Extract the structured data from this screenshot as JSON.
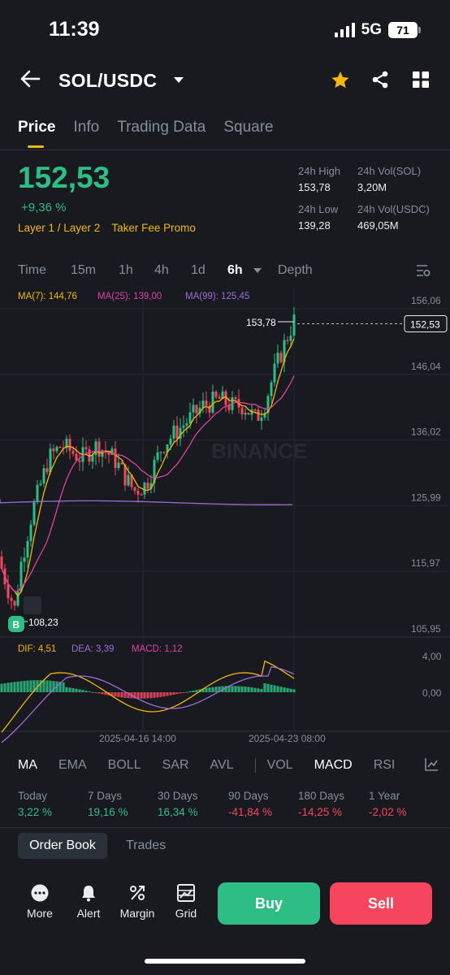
{
  "status": {
    "time": "11:39",
    "network": "5G",
    "battery": "71"
  },
  "header": {
    "pair": "SOL/USDC"
  },
  "tabs": [
    "Price",
    "Info",
    "Trading Data",
    "Square"
  ],
  "price": {
    "last": "152,53",
    "change": "+9,36 %"
  },
  "tags": [
    "Layer 1 / Layer 2",
    "Taker Fee Promo"
  ],
  "stats": {
    "high_label": "24h High",
    "high": "153,78",
    "vol_sol_label": "24h Vol(SOL)",
    "vol_sol": "3,20M",
    "low_label": "24h Low",
    "low": "139,28",
    "vol_usdc_label": "24h Vol(USDC)",
    "vol_usdc": "469,05M"
  },
  "timeframes": [
    "Time",
    "15m",
    "1h",
    "4h",
    "1d",
    "6h",
    "Depth"
  ],
  "chart": {
    "ma7": "MA(7): 144,76",
    "ma25": "MA(25): 139,00",
    "ma99": "MA(99): 125,45",
    "y_ticks": [
      "156,06",
      "146,04",
      "136,02",
      "125,99",
      "115,97",
      "105,95"
    ],
    "current_price": "152,53",
    "high_marker": "153,78",
    "low_marker": "108,23",
    "buy_marker": "B",
    "watermark": "BINANCE",
    "macd_dif": "DIF: 4,51",
    "macd_dea": "DEA: 3,39",
    "macd_val": "MACD: 1,12",
    "macd_ticks": [
      "4,00",
      "0,00"
    ],
    "x_ticks": [
      "2025-04-16 14:00",
      "2025-04-23 08:00"
    ],
    "colors": {
      "up": "#2ebd85",
      "down": "#f6465d",
      "ma7": "#f0b90b",
      "ma25": "#e040a0",
      "ma99": "#9b6dd8"
    }
  },
  "indicators": [
    "MA",
    "EMA",
    "BOLL",
    "SAR",
    "AVL",
    "VOL",
    "MACD",
    "RSI"
  ],
  "performance": [
    {
      "label": "Today",
      "value": "3,22 %",
      "dir": "up"
    },
    {
      "label": "7 Days",
      "value": "19,16 %",
      "dir": "up"
    },
    {
      "label": "30 Days",
      "value": "16,34 %",
      "dir": "up"
    },
    {
      "label": "90 Days",
      "value": "-41,84 %",
      "dir": "down"
    },
    {
      "label": "180 Days",
      "value": "-14,25 %",
      "dir": "down"
    },
    {
      "label": "1 Year",
      "value": "-2,02 %",
      "dir": "down"
    }
  ],
  "book_tabs": [
    "Order Book",
    "Trades"
  ],
  "bottom": {
    "more": "More",
    "alert": "Alert",
    "margin": "Margin",
    "grid": "Grid",
    "buy": "Buy",
    "sell": "Sell"
  }
}
